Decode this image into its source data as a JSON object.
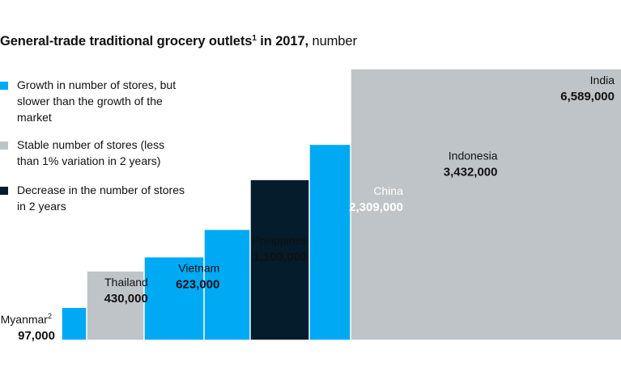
{
  "title": {
    "main": "General-trade traditional grocery outlets",
    "sup": "1",
    "year": " in 2017,",
    "unit": " number"
  },
  "legend": [
    {
      "label": "Growth in number of stores, but slower than the growth of the market",
      "color": "#00A9F4"
    },
    {
      "label": "Stable number of stores (less than 1% variation in 2 years)",
      "color": "#BFC4C8"
    },
    {
      "label": "Decrease in the number of stores in 2 years",
      "color": "#051C2C"
    }
  ],
  "chart_data": {
    "type": "bar",
    "title": "General-trade traditional grocery outlets in 2017, number",
    "categories": [
      "Myanmar",
      "Thailand",
      "Vietnam",
      "Philippines",
      "China",
      "Indonesia",
      "India"
    ],
    "category_superscripts": [
      "2",
      "",
      "",
      "",
      "",
      "",
      ""
    ],
    "values": [
      97000,
      430000,
      623000,
      1100000,
      2309000,
      3432000,
      6589000
    ],
    "value_labels": [
      "97,000",
      "430,000",
      "623,000",
      "1,100,000",
      "2,309,000",
      "3,432,000",
      "6,589,000"
    ],
    "groups": [
      "growth",
      "stable",
      "growth",
      "growth",
      "decrease",
      "growth",
      "stable"
    ],
    "colors": {
      "growth": "#00A9F4",
      "stable": "#BFC4C8",
      "decrease": "#051C2C"
    },
    "encoding": "square area proportional to value"
  }
}
